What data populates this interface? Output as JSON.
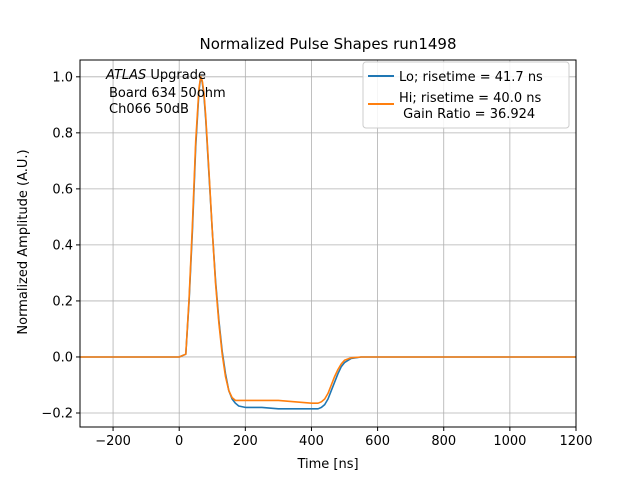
{
  "chart_data": {
    "type": "line",
    "title": "Normalized Pulse Shapes run1498",
    "xlabel": "Time [ns]",
    "ylabel": "Normalized Amplitude (A.U.)",
    "xlim": [
      -300,
      1200
    ],
    "ylim": [
      -0.25,
      1.06
    ],
    "xticks": [
      -200,
      0,
      200,
      400,
      600,
      800,
      1000,
      1200
    ],
    "xtick_labels": [
      "−200",
      "0",
      "200",
      "400",
      "600",
      "800",
      "1000",
      "1200"
    ],
    "yticks": [
      -0.2,
      0.0,
      0.2,
      0.4,
      0.6,
      0.8,
      1.0
    ],
    "ytick_labels": [
      "−0.2",
      "0.0",
      "0.2",
      "0.4",
      "0.6",
      "0.8",
      "1.0"
    ],
    "grid": true,
    "legend_position": "top-right",
    "annotation": {
      "atlas": "ATLAS",
      "upgrade": " Upgrade",
      "line2": "Board 634 50ohm",
      "line3": "Ch066 50dB"
    },
    "series": [
      {
        "name": "Lo; risetime = 41.7 ns",
        "color": "#1f77b4",
        "x": [
          -300,
          -200,
          -100,
          0,
          20,
          30,
          40,
          50,
          60,
          65,
          70,
          75,
          80,
          90,
          100,
          110,
          120,
          130,
          140,
          150,
          160,
          170,
          180,
          200,
          250,
          300,
          350,
          400,
          420,
          430,
          440,
          450,
          460,
          470,
          480,
          490,
          500,
          520,
          550,
          600,
          700,
          800,
          900,
          1000,
          1100,
          1200
        ],
        "y": [
          0.0,
          0.0,
          0.0,
          0.0,
          0.01,
          0.2,
          0.45,
          0.75,
          0.95,
          1.0,
          0.98,
          0.93,
          0.85,
          0.65,
          0.45,
          0.27,
          0.13,
          0.02,
          -0.06,
          -0.12,
          -0.15,
          -0.165,
          -0.175,
          -0.18,
          -0.18,
          -0.185,
          -0.185,
          -0.185,
          -0.185,
          -0.18,
          -0.17,
          -0.15,
          -0.12,
          -0.09,
          -0.06,
          -0.035,
          -0.02,
          -0.005,
          0.0,
          0.0,
          0.0,
          0.0,
          0.0,
          0.0,
          0.0,
          0.0
        ]
      },
      {
        "name": "Hi; risetime = 40.0 ns\n Gain Ratio = 36.924",
        "color": "#ff7f0e",
        "x": [
          -300,
          -200,
          -100,
          0,
          20,
          30,
          40,
          50,
          60,
          65,
          70,
          75,
          80,
          90,
          100,
          110,
          120,
          130,
          140,
          150,
          160,
          170,
          180,
          200,
          250,
          300,
          350,
          400,
          420,
          430,
          440,
          450,
          460,
          470,
          480,
          490,
          500,
          520,
          550,
          600,
          700,
          800,
          900,
          1000,
          1100,
          1200
        ],
        "y": [
          0.0,
          0.0,
          0.0,
          0.0,
          0.01,
          0.21,
          0.47,
          0.77,
          0.96,
          1.0,
          0.985,
          0.94,
          0.86,
          0.66,
          0.45,
          0.26,
          0.12,
          0.01,
          -0.07,
          -0.12,
          -0.145,
          -0.155,
          -0.155,
          -0.155,
          -0.155,
          -0.155,
          -0.16,
          -0.165,
          -0.165,
          -0.16,
          -0.15,
          -0.13,
          -0.1,
          -0.07,
          -0.045,
          -0.025,
          -0.012,
          -0.003,
          0.0,
          0.0,
          0.0,
          0.0,
          0.0,
          0.0,
          0.0,
          0.0
        ]
      }
    ]
  }
}
